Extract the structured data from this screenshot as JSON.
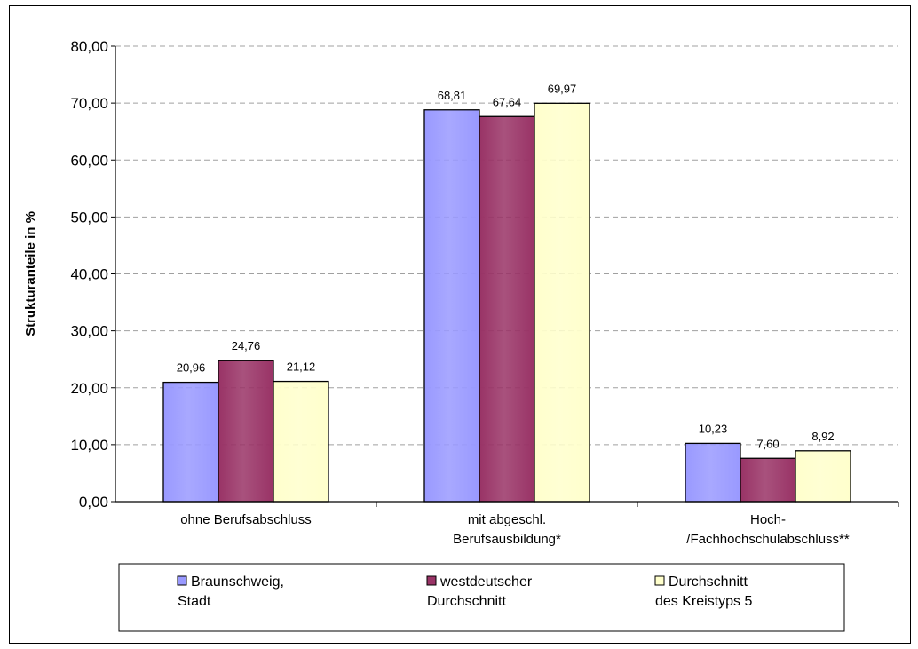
{
  "chart_data": {
    "type": "bar",
    "title": "",
    "xlabel": "",
    "ylabel": "Strukturanteile in %",
    "ylim": [
      0,
      80
    ],
    "yticks": [
      "0,00",
      "10,00",
      "20,00",
      "30,00",
      "40,00",
      "50,00",
      "60,00",
      "70,00",
      "80,00"
    ],
    "grid": true,
    "legend_position": "bottom",
    "categories": [
      [
        "ohne Berufsabschluss"
      ],
      [
        "mit abgeschl.",
        "Berufsausbildung*"
      ],
      [
        "Hoch-",
        "/Fachhochschulabschluss**"
      ]
    ],
    "series": [
      {
        "name": [
          "Braunschweig,",
          "Stadt"
        ],
        "color": "#9999ff",
        "values": [
          20.96,
          68.81,
          10.23
        ],
        "labels": [
          "20,96",
          "68,81",
          "10,23"
        ]
      },
      {
        "name": [
          "westdeutscher",
          "Durchschnitt"
        ],
        "color": "#993366",
        "values": [
          24.76,
          67.64,
          7.6
        ],
        "labels": [
          "24,76",
          "67,64",
          "7,60"
        ]
      },
      {
        "name": [
          "Durchschnitt",
          "des Kreistyps 5"
        ],
        "color": "#ffffcc",
        "values": [
          21.12,
          69.97,
          8.92
        ],
        "labels": [
          "21,12",
          "69,97",
          "8,92"
        ]
      }
    ]
  }
}
